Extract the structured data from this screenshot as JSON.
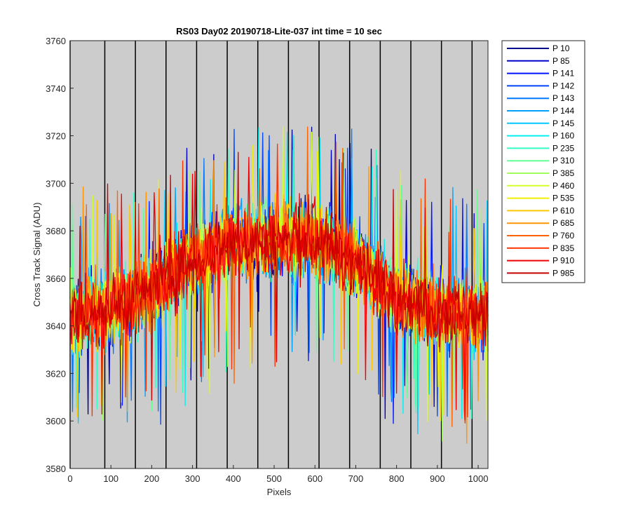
{
  "chart_data": {
    "type": "line",
    "title": "RS03 Day02 20190718-Lite-037 int time = 10 sec",
    "xlabel": "Pixels",
    "ylabel": "Cross Track Signal (ADU)",
    "xlim": [
      0,
      1024
    ],
    "ylim": [
      3580,
      3760
    ],
    "xticks": [
      0,
      100,
      200,
      300,
      400,
      500,
      600,
      700,
      800,
      900,
      1000
    ],
    "yticks": [
      3580,
      3600,
      3620,
      3640,
      3660,
      3680,
      3700,
      3720,
      3740,
      3760
    ],
    "background_color": "#cccccc",
    "vertical_lines_x": [
      0,
      85,
      160,
      235,
      310,
      385,
      460,
      535,
      610,
      685,
      760,
      835,
      910,
      985
    ],
    "legend_position": "outside-right",
    "profile": {
      "x": [
        0,
        100,
        200,
        300,
        400,
        500,
        600,
        700,
        800,
        900,
        1024
      ],
      "mean": [
        3645,
        3647,
        3655,
        3668,
        3675,
        3676,
        3676,
        3668,
        3652,
        3646,
        3644
      ],
      "noise_amplitude": 26
    },
    "series": [
      {
        "name": "P 10",
        "color": "#00008f"
      },
      {
        "name": "P 85",
        "color": "#0000c8"
      },
      {
        "name": "P 141",
        "color": "#0014ff"
      },
      {
        "name": "P 142",
        "color": "#0046ff"
      },
      {
        "name": "P 143",
        "color": "#0078ff"
      },
      {
        "name": "P 144",
        "color": "#00a0ff"
      },
      {
        "name": "P 145",
        "color": "#00c8ff"
      },
      {
        "name": "P 160",
        "color": "#00f0f0"
      },
      {
        "name": "P 235",
        "color": "#32ffc8"
      },
      {
        "name": "P 310",
        "color": "#64ff96"
      },
      {
        "name": "P 385",
        "color": "#a0ff5a"
      },
      {
        "name": "P 460",
        "color": "#d2ff28"
      },
      {
        "name": "P 535",
        "color": "#f0f000"
      },
      {
        "name": "P 610",
        "color": "#ffc800"
      },
      {
        "name": "P 685",
        "color": "#ff9600"
      },
      {
        "name": "P 760",
        "color": "#ff6400"
      },
      {
        "name": "P 835",
        "color": "#ff3200"
      },
      {
        "name": "P 910",
        "color": "#f00000"
      },
      {
        "name": "P 985",
        "color": "#c80000"
      }
    ]
  }
}
